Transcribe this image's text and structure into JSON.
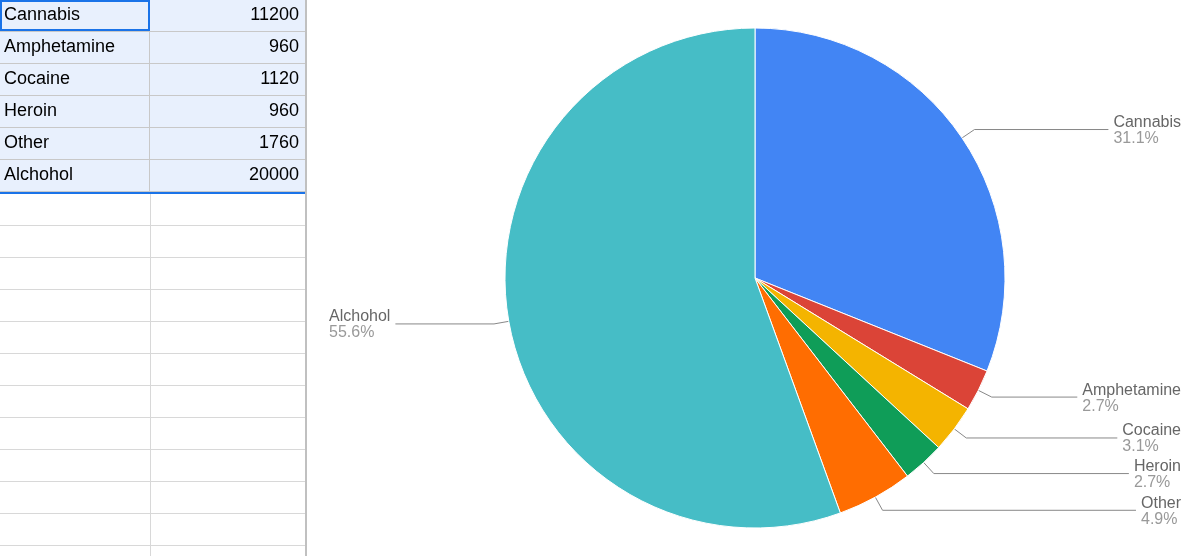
{
  "chart_data": {
    "type": "pie",
    "categories": [
      "Cannabis",
      "Amphetamine",
      "Cocaine",
      "Heroin",
      "Other",
      "Alchohol"
    ],
    "values": [
      31.1,
      2.7,
      3.1,
      2.7,
      4.9,
      55.6
    ],
    "colors": [
      "#4285f4",
      "#db4437",
      "#f4b400",
      "#0f9d58",
      "#ff6d01",
      "#46bdc6"
    ],
    "value_labels": [
      "31.1%",
      "2.7%",
      "3.1%",
      "2.7%",
      "4.9%",
      "55.6%"
    ],
    "annotations": [
      "11200",
      "960",
      "1120",
      "960",
      "1760",
      "20000"
    ],
    "legend": false
  }
}
